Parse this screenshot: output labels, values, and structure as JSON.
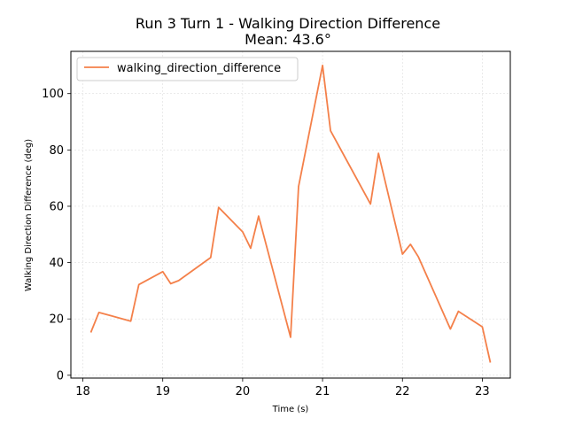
{
  "chart_data": {
    "type": "line",
    "title": "Run 3 Turn 1 - Walking Direction Difference",
    "subtitle": "Mean: 43.6°",
    "xlabel": "Time (s)",
    "ylabel": "Walking Direction Difference (deg)",
    "xlim": [
      17.85,
      23.35
    ],
    "ylim": [
      -1,
      115
    ],
    "xticks": [
      18,
      19,
      20,
      21,
      22,
      23
    ],
    "yticks": [
      0,
      20,
      40,
      60,
      80,
      100
    ],
    "grid": true,
    "legend": "top-left",
    "series": [
      {
        "name": "walking_direction_difference",
        "color": "#f4804a",
        "x": [
          18.1,
          18.2,
          18.6,
          18.7,
          19.0,
          19.1,
          19.2,
          19.6,
          19.7,
          20.0,
          20.1,
          20.2,
          20.6,
          20.7,
          21.0,
          21.1,
          21.6,
          21.7,
          22.0,
          22.1,
          22.2,
          22.6,
          22.7,
          23.0,
          23.1
        ],
        "y": [
          15.2,
          22.3,
          19.2,
          32.2,
          36.8,
          32.5,
          33.6,
          41.8,
          59.6,
          50.9,
          45.1,
          56.5,
          13.5,
          67.0,
          110.0,
          86.8,
          60.8,
          78.8,
          43.0,
          46.5,
          42.0,
          16.4,
          22.7,
          17.2,
          4.5
        ]
      }
    ]
  }
}
